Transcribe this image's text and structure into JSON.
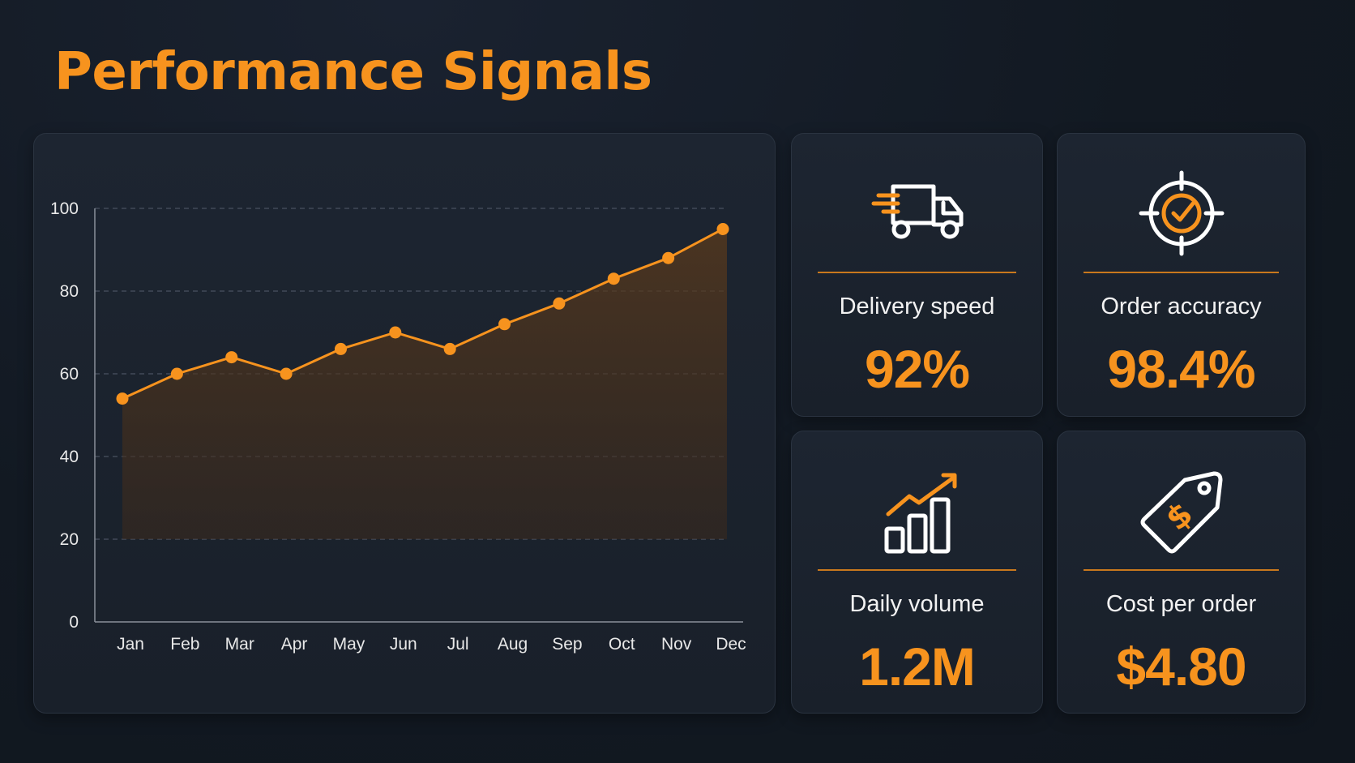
{
  "title": "Performance Signals",
  "colors": {
    "accent": "#f7931e",
    "background": "#121922",
    "panel": "#1c2430",
    "text": "#f2f2f2"
  },
  "chart_data": {
    "type": "area",
    "title": "",
    "xlabel": "",
    "ylabel": "",
    "categories": [
      "Jan",
      "Feb",
      "Mar",
      "Apr",
      "May",
      "Jun",
      "Jul",
      "Aug",
      "Sep",
      "Oct",
      "Nov",
      "Dec"
    ],
    "series": [
      {
        "values": [
          54,
          60,
          64,
          60,
          66,
          70,
          66,
          72,
          77,
          83,
          88,
          95
        ]
      }
    ],
    "ylim": [
      0,
      100
    ],
    "yticks": [
      0,
      20,
      40,
      60,
      80,
      100
    ],
    "grid": true,
    "color": "#f7931e"
  },
  "metrics": [
    {
      "label": "Delivery speed",
      "value": "92%",
      "icon": "truck-icon"
    },
    {
      "label": "Order accuracy",
      "value": "98.4%",
      "icon": "target-check-icon"
    },
    {
      "label": "Daily volume",
      "value": "1.2M",
      "icon": "growth-bars-icon"
    },
    {
      "label": "Cost per order",
      "value": "$4.80",
      "icon": "price-tag-icon"
    }
  ]
}
